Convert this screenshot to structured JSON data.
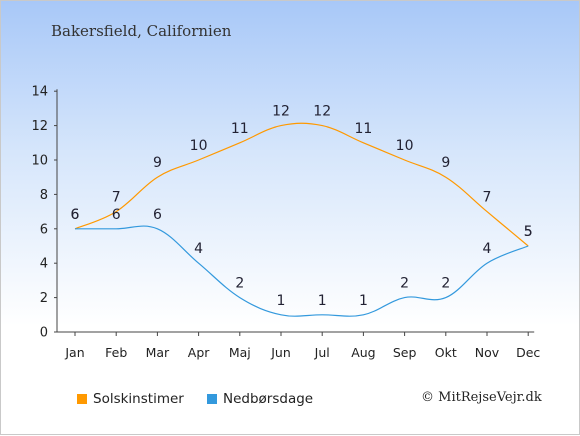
{
  "chart_data": {
    "type": "line",
    "title": "Bakersfield, Californien",
    "categories": [
      "Jan",
      "Feb",
      "Mar",
      "Apr",
      "Maj",
      "Jun",
      "Jul",
      "Aug",
      "Sep",
      "Okt",
      "Nov",
      "Dec"
    ],
    "series": [
      {
        "name": "Solskinstimer",
        "color": "#ff9900",
        "values": [
          6,
          7,
          9,
          10,
          11,
          12,
          12,
          11,
          10,
          9,
          7,
          5
        ]
      },
      {
        "name": "Nedbørsdage",
        "color": "#3399dd",
        "values": [
          6,
          6,
          6,
          4,
          2,
          1,
          1,
          1,
          2,
          2,
          4,
          5
        ]
      }
    ],
    "ylim": [
      0,
      14
    ],
    "yticks": [
      0,
      2,
      4,
      6,
      8,
      10,
      12,
      14
    ],
    "grid": false,
    "legend": "bottom"
  },
  "copyright": "© MitRejseVejr.dk"
}
